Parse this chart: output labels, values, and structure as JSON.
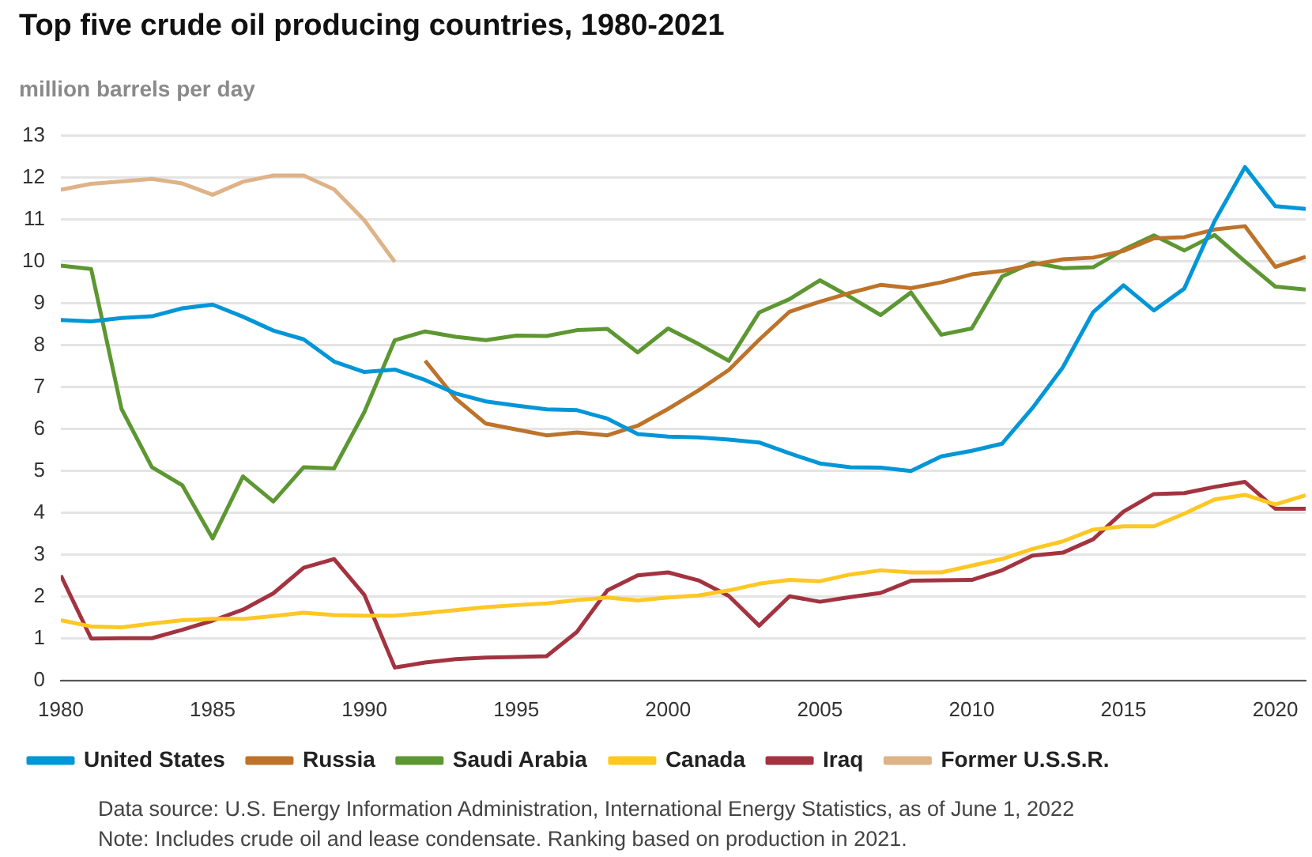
{
  "chart_data": {
    "type": "line",
    "title": "Top five crude oil producing countries, 1980-2021",
    "ylabel": "million barrels per day",
    "x": [
      1980,
      1981,
      1982,
      1983,
      1984,
      1985,
      1986,
      1987,
      1988,
      1989,
      1990,
      1991,
      1992,
      1993,
      1994,
      1995,
      1996,
      1997,
      1998,
      1999,
      2000,
      2001,
      2002,
      2003,
      2004,
      2005,
      2006,
      2007,
      2008,
      2009,
      2010,
      2011,
      2012,
      2013,
      2014,
      2015,
      2016,
      2017,
      2018,
      2019,
      2020,
      2021
    ],
    "xlim": [
      1980,
      2021
    ],
    "xticks": [
      1980,
      1985,
      1990,
      1995,
      2000,
      2005,
      2010,
      2015,
      2020
    ],
    "ylim": [
      0,
      13
    ],
    "yticks": [
      0,
      1,
      2,
      3,
      4,
      5,
      6,
      7,
      8,
      9,
      10,
      11,
      12,
      13
    ],
    "grid": "y",
    "legend": "bottom",
    "marker": "none",
    "line_style": "solid",
    "series": [
      {
        "name": "United States",
        "color": "#0096d7",
        "values": [
          8.6,
          8.57,
          8.65,
          8.69,
          8.88,
          8.97,
          8.68,
          8.35,
          8.14,
          7.61,
          7.36,
          7.42,
          7.17,
          6.85,
          6.66,
          6.56,
          6.47,
          6.45,
          6.25,
          5.88,
          5.82,
          5.8,
          5.75,
          5.68,
          5.42,
          5.18,
          5.09,
          5.08,
          5.0,
          5.35,
          5.48,
          5.65,
          6.5,
          7.47,
          8.79,
          9.43,
          8.83,
          9.35,
          10.96,
          12.25,
          11.32,
          11.25
        ]
      },
      {
        "name": "Russia",
        "color": "#bd732a",
        "values": [
          null,
          null,
          null,
          null,
          null,
          null,
          null,
          null,
          null,
          null,
          null,
          null,
          7.63,
          6.73,
          6.13,
          5.99,
          5.85,
          5.92,
          5.85,
          6.08,
          6.48,
          6.92,
          7.41,
          8.13,
          8.8,
          9.04,
          9.25,
          9.44,
          9.36,
          9.5,
          9.69,
          9.77,
          9.92,
          10.05,
          10.09,
          10.25,
          10.55,
          10.58,
          10.76,
          10.84,
          9.87,
          10.11
        ]
      },
      {
        "name": "Saudi Arabia",
        "color": "#5d9732",
        "values": [
          9.9,
          9.82,
          6.48,
          5.09,
          4.66,
          3.39,
          4.87,
          4.27,
          5.09,
          5.06,
          6.41,
          8.12,
          8.33,
          8.2,
          8.12,
          8.23,
          8.22,
          8.36,
          8.39,
          7.83,
          8.4,
          8.03,
          7.63,
          8.78,
          9.1,
          9.55,
          9.15,
          8.72,
          9.26,
          8.25,
          8.4,
          9.64,
          9.97,
          9.84,
          9.86,
          10.28,
          10.62,
          10.26,
          10.63,
          10.0,
          9.4,
          9.33
        ]
      },
      {
        "name": "Canada",
        "color": "#ffc724",
        "values": [
          1.44,
          1.29,
          1.27,
          1.36,
          1.44,
          1.47,
          1.47,
          1.54,
          1.62,
          1.56,
          1.55,
          1.55,
          1.61,
          1.68,
          1.75,
          1.8,
          1.84,
          1.92,
          1.98,
          1.91,
          1.98,
          2.03,
          2.15,
          2.31,
          2.4,
          2.37,
          2.53,
          2.63,
          2.58,
          2.58,
          2.74,
          2.9,
          3.14,
          3.32,
          3.6,
          3.68,
          3.68,
          3.98,
          4.32,
          4.43,
          4.2,
          4.42
        ]
      },
      {
        "name": "Iraq",
        "color": "#a33340",
        "values": [
          2.51,
          1.0,
          1.01,
          1.01,
          1.21,
          1.43,
          1.69,
          2.08,
          2.69,
          2.9,
          2.04,
          0.31,
          0.43,
          0.51,
          0.55,
          0.56,
          0.58,
          1.16,
          2.15,
          2.51,
          2.58,
          2.39,
          2.02,
          1.31,
          2.01,
          1.88,
          1.99,
          2.09,
          2.38,
          2.39,
          2.4,
          2.63,
          2.98,
          3.05,
          3.37,
          4.03,
          4.45,
          4.47,
          4.62,
          4.74,
          4.1,
          4.1
        ]
      },
      {
        "name": "Former U.S.S.R.",
        "color": "#deb388",
        "values": [
          11.71,
          11.85,
          11.91,
          11.97,
          11.86,
          11.59,
          11.9,
          12.05,
          12.05,
          11.72,
          10.98,
          9.99,
          null,
          null,
          null,
          null,
          null,
          null,
          null,
          null,
          null,
          null,
          null,
          null,
          null,
          null,
          null,
          null,
          null,
          null,
          null,
          null,
          null,
          null,
          null,
          null,
          null,
          null,
          null,
          null,
          null,
          null
        ]
      }
    ],
    "annotations": [
      "Data source: U.S. Energy Information Administration, International Energy Statistics, as of June 1, 2022",
      "Note: Includes crude oil and lease condensate. Ranking based on production in 2021."
    ]
  }
}
